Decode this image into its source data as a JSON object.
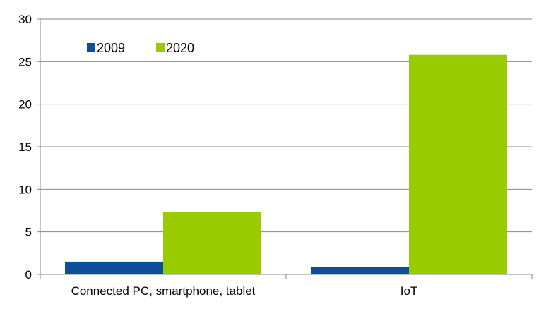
{
  "chart_data": {
    "type": "bar",
    "categories": [
      "Connected PC, smartphone, tablet",
      "IoT"
    ],
    "series": [
      {
        "name": "2009",
        "values": [
          1.5,
          0.9
        ],
        "color": "#0b4e9a"
      },
      {
        "name": "2020",
        "values": [
          7.3,
          25.8
        ],
        "color": "#99cc00"
      }
    ],
    "ylim": [
      0,
      30
    ],
    "yticks": [
      0,
      5,
      10,
      15,
      20,
      25,
      30
    ],
    "grid": true,
    "legend": "top-left"
  }
}
